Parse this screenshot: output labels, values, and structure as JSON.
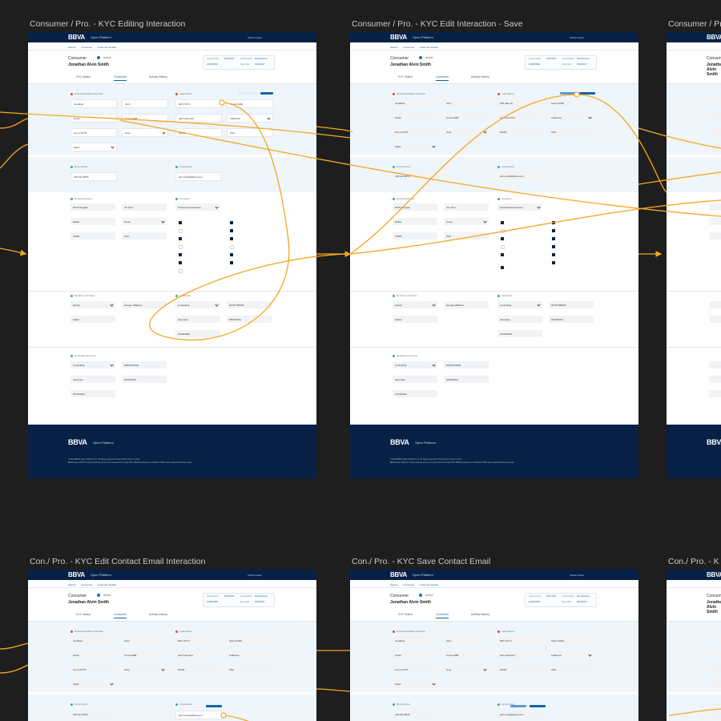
{
  "frames": {
    "f1_title": "Consumer / Pro. - KYC Editing Interaction",
    "f2_title": "Consumer / Pro. - KYC Edit Interaction - Save",
    "f3_title": "Consumer / Pr",
    "f4_title": "Con./ Pro. - KYC Edit Contact Email Interaction",
    "f5_title": "Con./ Pro. - KYC Save Contact Email",
    "f6_title": "Con./ Pro. - K"
  },
  "app": {
    "logo": "BBVA",
    "subtitle": "Open Platform",
    "user_menu": "Robert Howe",
    "breadcrumbs": [
      "Search",
      "Consumer",
      "Customer Details"
    ]
  },
  "consumer": {
    "label": "Consumer",
    "status": "Active",
    "name": "Jonathan Alvin Smith",
    "meta_status_label": "Latest Activity",
    "meta_status_value": "06/27/2017",
    "meta_user_label": "Last Modified",
    "meta_user_value": "Max Robinson",
    "meta_id": "1234567890",
    "meta_date_label": "Reg. Date",
    "meta_date_value": "06/20/2017"
  },
  "tabs": [
    "KYC Status",
    "Consumer",
    "Activity History"
  ],
  "sections": {
    "personal": "Personal Identifiable Information",
    "legal_address": "Legal Address",
    "phone": "Phone Number",
    "email": "Contact Email",
    "residence": "Residential Address",
    "occupation": "Occupation",
    "beneficiary": "Beneficiary Information",
    "identification": "Identification",
    "id_document": "Identification Document"
  },
  "fields": {
    "first_name": "Jonathan",
    "middle_name": "Alvin",
    "last_name": "Smith",
    "dob": "12-04-1988",
    "ssn": "xxx-xx-9776",
    "citizenship": "Gray",
    "birth_country": "Spain",
    "legal_street": "820 17th S",
    "legal_street_2": "Suite #1400",
    "legal_street_alt": "205 Lake St",
    "city": "San Francisco",
    "state": "California",
    "zip": "94105",
    "country": "USA",
    "phone": "415-321-5876",
    "email": "john.smith@bbva.com",
    "res_street": "8270 Douglas",
    "res_unit": "7th Floor",
    "res_city": "Dallas",
    "res_state": "Texas",
    "res_zip": "75225",
    "res_country": "USA",
    "occupation": "Professional Services",
    "ben_relation": "Family",
    "ben_name": "George Williams",
    "ben_role": "Father",
    "id_type": "Controlling",
    "id_number": "06757786645",
    "id_issuer": "Jane Doe",
    "id_exp": "05/25/2021",
    "id_issue": "07/26/2020",
    "doc_type": "Controlling",
    "doc_number": "06847621904",
    "doc_holder": "Jane Doe",
    "doc_exp": "03/05/2021",
    "doc_issue": "07/26/2022"
  },
  "footer": {
    "logo": "BBVA",
    "subtitle": "Open Platform",
    "legal": "© 2018 BBVA Open Platform Inc. All rights reserved. Privacy Policy  Terms of Use",
    "legal2": "BBVA Open Platform brings banking services to businesses through APIs. BBVA Compass is a Member FDIC and an Equal Housing Lender."
  },
  "colors": {
    "canvas": "#1e1e1e",
    "brand_navy": "#072146",
    "accent_blue": "#1464a5",
    "section_blue": "#eef5fb",
    "wire_orange": "#f5a623"
  }
}
